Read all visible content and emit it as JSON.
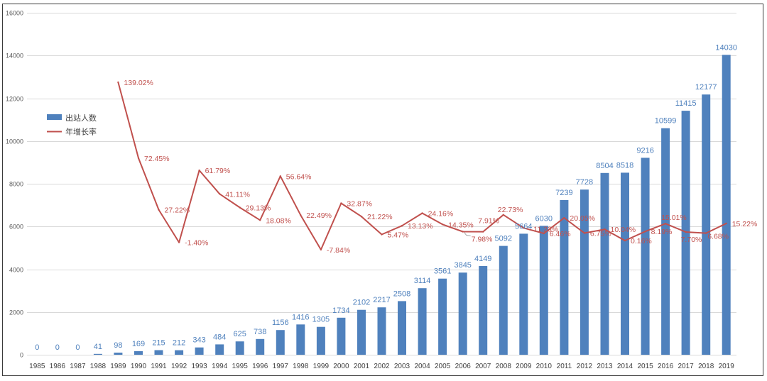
{
  "chart_data": {
    "type": "bar",
    "categories": [
      "1985",
      "1986",
      "1987",
      "1988",
      "1989",
      "1990",
      "1991",
      "1992",
      "1993",
      "1994",
      "1995",
      "1996",
      "1997",
      "1998",
      "1999",
      "2000",
      "2001",
      "2002",
      "2003",
      "2004",
      "2005",
      "2006",
      "2007",
      "2008",
      "2009",
      "2010",
      "2011",
      "2012",
      "2013",
      "2014",
      "2015",
      "2016",
      "2017",
      "2018",
      "2019"
    ],
    "yticks": [
      0,
      2000,
      4000,
      6000,
      8000,
      10000,
      12000,
      14000,
      16000
    ],
    "ylim": [
      0,
      16000
    ],
    "y2lim": [
      -100,
      200
    ],
    "grid": true,
    "legend": "left",
    "series": [
      {
        "name": "出站人数",
        "type": "bar",
        "color": "#4F81BD",
        "values": [
          0,
          0,
          0,
          41,
          98,
          169,
          215,
          212,
          343,
          484,
          625,
          738,
          1156,
          1416,
          1305,
          1734,
          2102,
          2217,
          2508,
          3114,
          3561,
          3845,
          4149,
          5092,
          5664,
          6030,
          7239,
          7728,
          8504,
          8518,
          9216,
          10599,
          11415,
          12177,
          14030
        ]
      },
      {
        "name": "年增长率",
        "type": "line",
        "secondary_axis": true,
        "color": "#C0504D",
        "values": [
          null,
          null,
          null,
          null,
          139.02,
          72.45,
          27.22,
          -1.4,
          61.79,
          41.11,
          29.13,
          18.08,
          56.64,
          22.49,
          -7.84,
          32.87,
          21.22,
          5.47,
          13.13,
          24.16,
          14.35,
          7.98,
          7.91,
          22.73,
          11.23,
          6.46,
          20.05,
          6.75,
          10.04,
          0.16,
          8.19,
          15.01,
          7.7,
          6.68,
          15.22
        ],
        "labels": [
          null,
          null,
          null,
          null,
          "139.02%",
          "72.45%",
          "27.22%",
          "-1.40%",
          "61.79%",
          "41.11%",
          "29.13%",
          "18.08%",
          "56.64%",
          "22.49%",
          "-7.84%",
          "32.87%",
          "21.22%",
          "5.47%",
          "13.13%",
          "24.16%",
          "14.35%",
          "7.98%",
          "7.91%",
          "22.73%",
          "11.23%",
          "6.46%",
          "20.05%",
          "6.75%",
          "10.04%",
          "0.16%",
          "8.19%",
          "15.01%",
          "7.70%",
          "6.68%",
          "15.22%"
        ]
      }
    ]
  }
}
